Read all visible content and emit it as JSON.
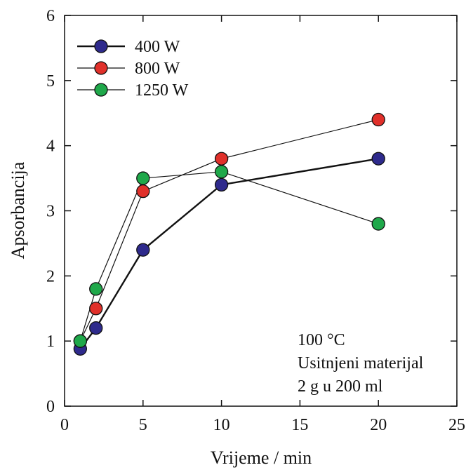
{
  "chart_data": {
    "type": "line",
    "xlabel": "Vrijeme / min",
    "ylabel": "Apsorbancija",
    "xlim": [
      0,
      25
    ],
    "ylim": [
      0,
      6
    ],
    "xticks": [
      0,
      5,
      10,
      15,
      20,
      25
    ],
    "yticks": [
      0,
      1,
      2,
      3,
      4,
      5,
      6
    ],
    "grid": false,
    "legend_position": "top-left",
    "series": [
      {
        "name": "400 W",
        "color": "#2e2a8c",
        "x": [
          1,
          2,
          5,
          10,
          20
        ],
        "y": [
          0.88,
          1.2,
          2.4,
          3.4,
          3.8
        ],
        "bold": true
      },
      {
        "name": "800 W",
        "color": "#e0302a",
        "x": [
          1,
          2,
          5,
          10,
          20
        ],
        "y": [
          1.0,
          1.5,
          3.3,
          3.8,
          4.4
        ],
        "bold": false
      },
      {
        "name": "1250 W",
        "color": "#1fa84a",
        "x": [
          1,
          2,
          5,
          10,
          20
        ],
        "y": [
          1.0,
          1.8,
          3.5,
          3.6,
          2.8
        ],
        "bold": false
      }
    ],
    "annotations": [
      "100 °C",
      "Usitnjeni materijal",
      "2 g u 200 ml"
    ]
  }
}
